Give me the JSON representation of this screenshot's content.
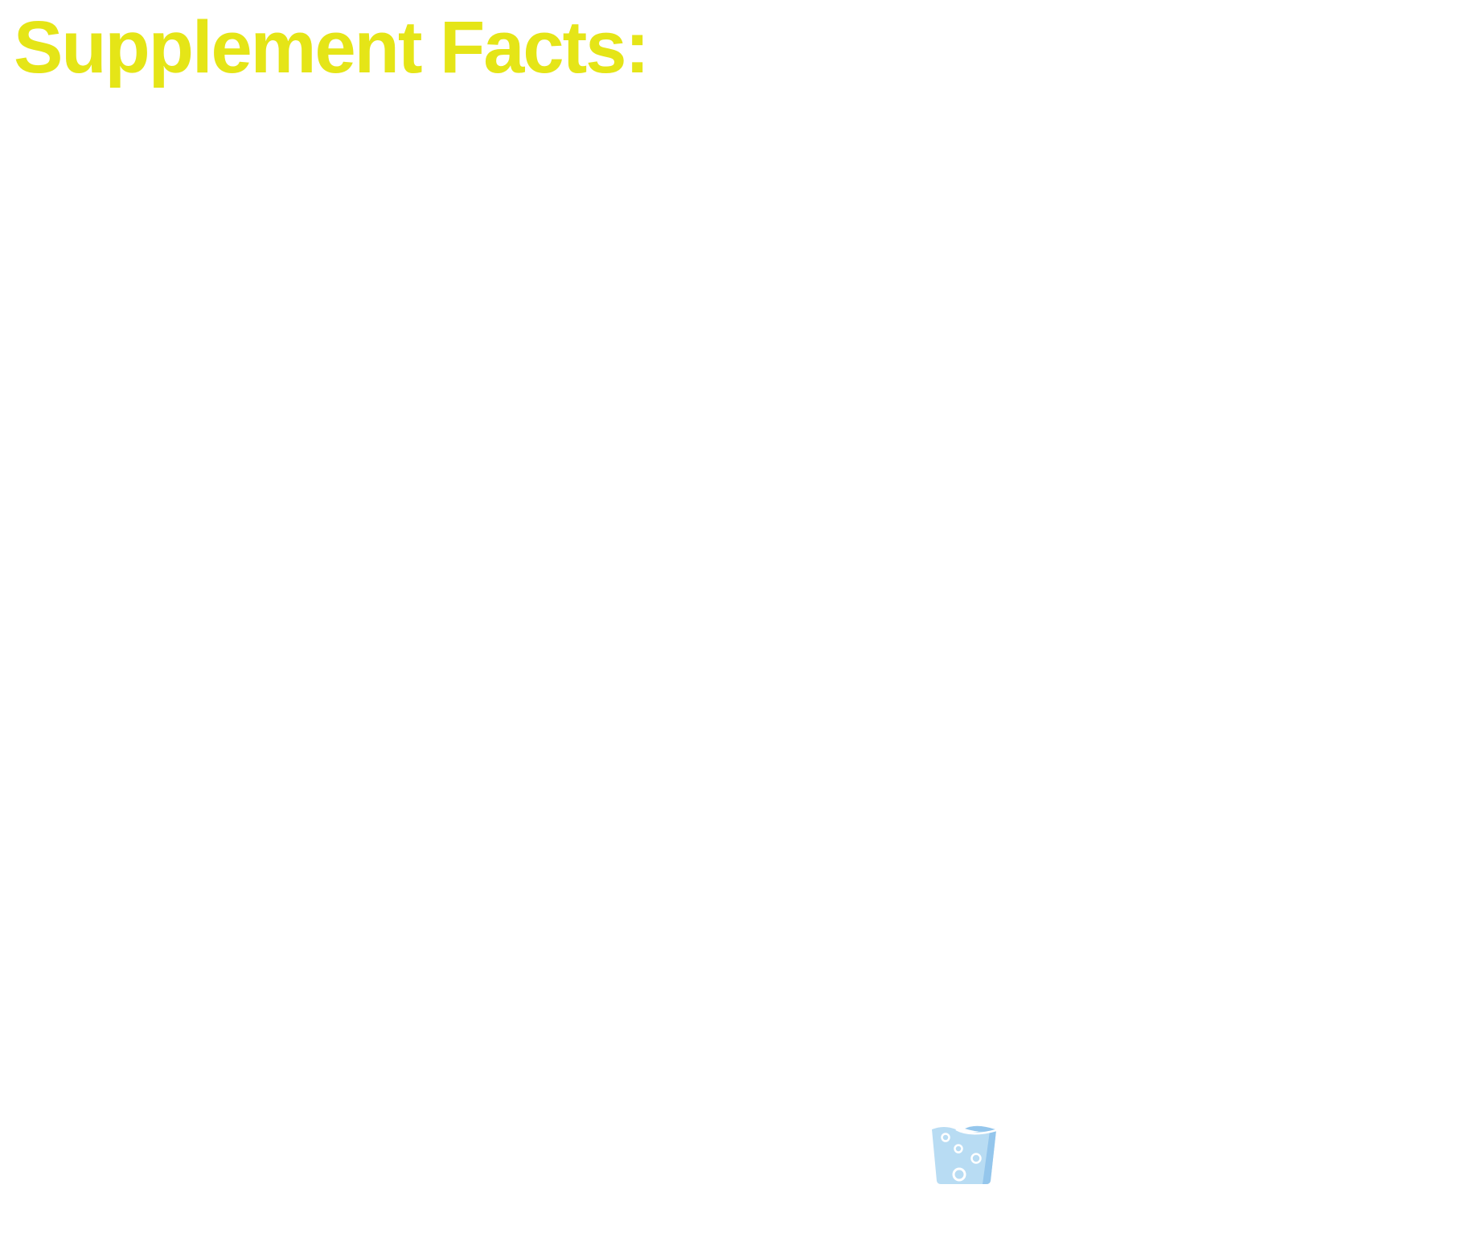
{
  "heading": {
    "text": "Supplement Facts:",
    "color": "#e5e517"
  },
  "icons": {
    "glass": {
      "name": "water-glass-icon",
      "fill": "#b8dcf3",
      "shade": "#94c6ec",
      "bubbles": "#ffffff"
    }
  }
}
